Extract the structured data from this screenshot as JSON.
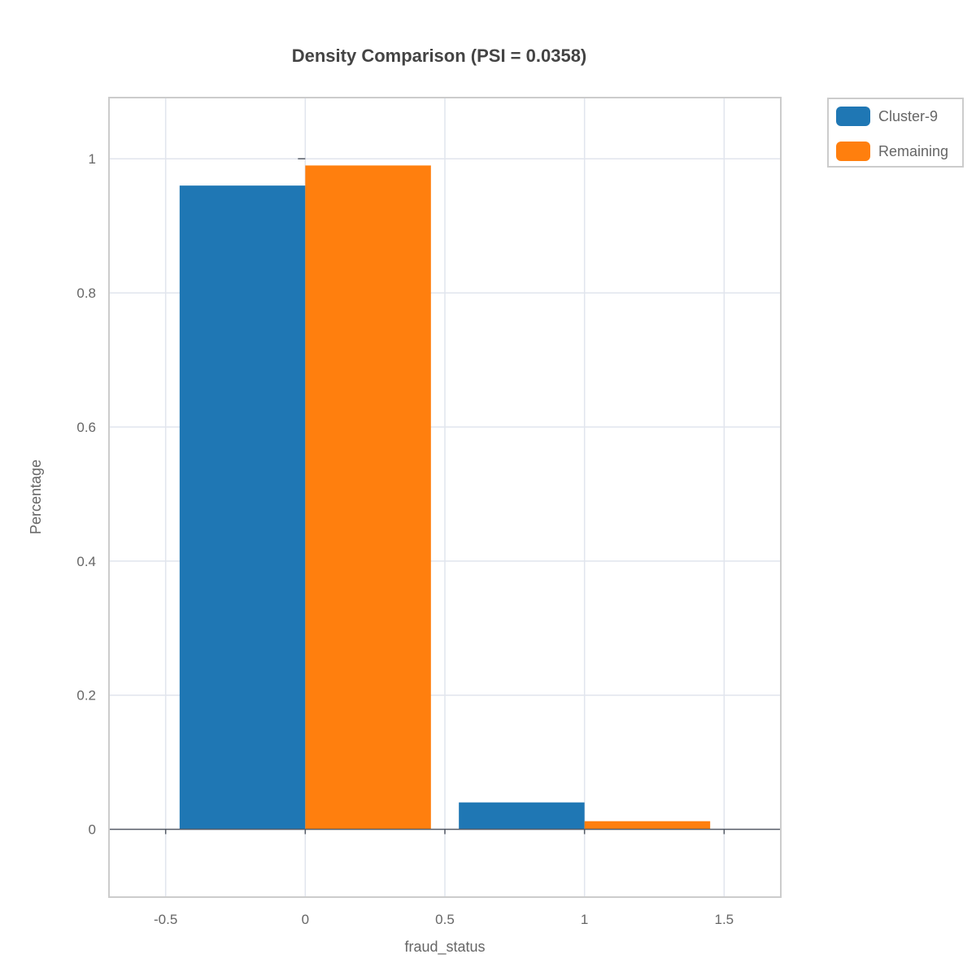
{
  "chart_data": {
    "type": "bar",
    "title": "Density Comparison (PSI = 0.0358)",
    "xlabel": "fraud_status",
    "ylabel": "Percentage",
    "xlim": [
      -0.7,
      1.7
    ],
    "ylim": [
      -0.1,
      1.09
    ],
    "xticks": [
      -0.5,
      0,
      0.5,
      1,
      1.5
    ],
    "xtick_labels": [
      "-0.5",
      "0",
      "0.5",
      "1",
      "1.5"
    ],
    "yticks": [
      0,
      0.2,
      0.4,
      0.6,
      0.8,
      1
    ],
    "ytick_labels": [
      "0",
      "0.2",
      "0.4",
      "0.6",
      "0.8",
      "1"
    ],
    "grid": true,
    "legend_position": "top-right outside",
    "bar_width": 0.45,
    "series": [
      {
        "name": "Cluster-9",
        "color": "#1f77b4",
        "x": [
          0,
          1
        ],
        "values": [
          0.96,
          0.04
        ]
      },
      {
        "name": "Remaining",
        "color": "#ff7f0e",
        "x": [
          0,
          1
        ],
        "values": [
          0.99,
          0.012
        ]
      }
    ]
  }
}
